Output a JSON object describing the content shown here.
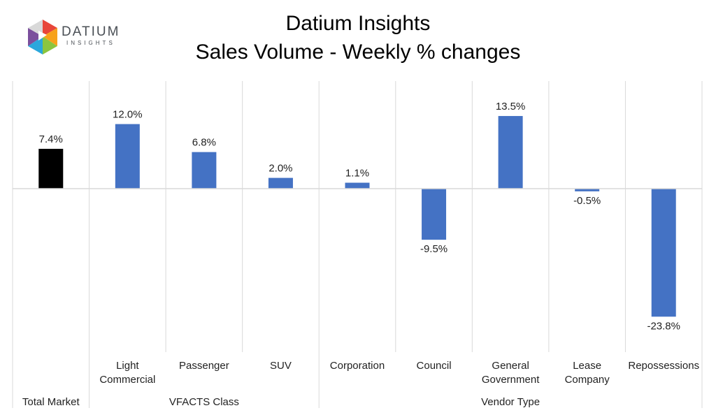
{
  "logo": {
    "name": "DATIUM",
    "tagline": "INSIGHTS",
    "colors": [
      "#e8463a",
      "#f7a21b",
      "#8bc53f",
      "#2aa7dc",
      "#7b4f9d"
    ]
  },
  "titles": {
    "line1": "Datium Insights",
    "line2": "Sales Volume - Weekly % changes"
  },
  "chart_data": {
    "type": "bar",
    "categories": [
      "",
      "Light Commercial",
      "Passenger",
      "SUV",
      "Corporation",
      "Council",
      "General Government",
      "Lease Company",
      "Repossessions"
    ],
    "category_lines": [
      [],
      [
        "Light",
        "Commercial"
      ],
      [
        "Passenger"
      ],
      [
        "SUV"
      ],
      [
        "Corporation"
      ],
      [
        "Council"
      ],
      [
        "General",
        "Government"
      ],
      [
        "Lease",
        "Company"
      ],
      [
        "Repossessions"
      ]
    ],
    "groups": [
      {
        "label": "Total Market",
        "start": 0,
        "end": 0
      },
      {
        "label": "VFACTS Class",
        "start": 1,
        "end": 3
      },
      {
        "label": "Vendor Type",
        "start": 4,
        "end": 8
      }
    ],
    "values": [
      7.4,
      12.0,
      6.8,
      2.0,
      1.1,
      -9.5,
      13.5,
      -0.5,
      -23.8
    ],
    "value_labels": [
      "7.4%",
      "12.0%",
      "6.8%",
      "2.0%",
      "1.1%",
      "-9.5%",
      "13.5%",
      "-0.5%",
      "-23.8%"
    ],
    "colors": [
      "#000000",
      "#4472c4",
      "#4472c4",
      "#4472c4",
      "#4472c4",
      "#4472c4",
      "#4472c4",
      "#4472c4",
      "#4472c4"
    ],
    "ylim": [
      -30,
      20
    ],
    "grid": false
  }
}
